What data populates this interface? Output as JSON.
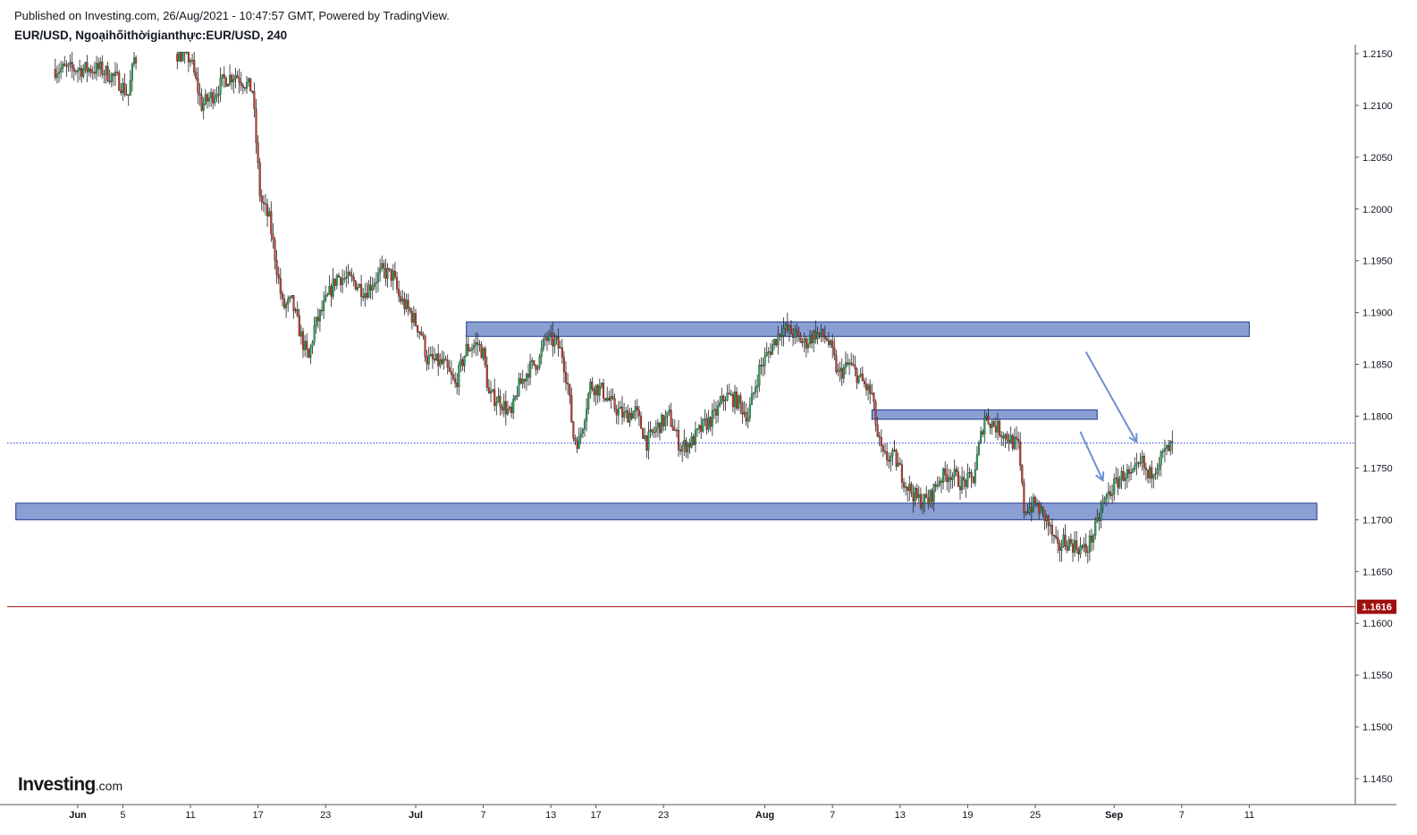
{
  "header": {
    "published": "Published on Investing.com, 26/Aug/2021 - 10:47:57 GMT, Powered by TradingView.",
    "symbol": "EUR/USD, Ngoạihốithờigianthực:EUR/USD, 240"
  },
  "logo": {
    "brand": "Investing",
    "suffix": ".com"
  },
  "chart_data": {
    "type": "candlestick",
    "symbol": "EUR/USD",
    "interval": "240",
    "ylim": [
      1.1425,
      1.2162
    ],
    "y_ticks": [
      "1.2150",
      "1.2100",
      "1.2050",
      "1.2000",
      "1.1950",
      "1.1900",
      "1.1850",
      "1.1800",
      "1.1750",
      "1.1700",
      "1.1650",
      "1.1600",
      "1.1550",
      "1.1500",
      "1.1450"
    ],
    "x_ticks": [
      {
        "label": "Jun",
        "day": 0,
        "bold": true
      },
      {
        "label": "5",
        "day": 4
      },
      {
        "label": "11",
        "day": 10
      },
      {
        "label": "17",
        "day": 16
      },
      {
        "label": "23",
        "day": 22
      },
      {
        "label": "Jul",
        "day": 30,
        "bold": true
      },
      {
        "label": "7",
        "day": 36
      },
      {
        "label": "13",
        "day": 42
      },
      {
        "label": "17",
        "day": 46
      },
      {
        "label": "23",
        "day": 52
      },
      {
        "label": "Aug",
        "day": 61,
        "bold": true
      },
      {
        "label": "7",
        "day": 67
      },
      {
        "label": "13",
        "day": 73
      },
      {
        "label": "19",
        "day": 79
      },
      {
        "label": "25",
        "day": 85
      },
      {
        "label": "Sep",
        "day": 92,
        "bold": true
      },
      {
        "label": "7",
        "day": 98
      },
      {
        "label": "11",
        "day": 104
      }
    ],
    "current_price": {
      "value": 1.1774,
      "style": "dotted",
      "color": "#1e3fc8"
    },
    "price_line": {
      "value": 1.1616,
      "label": "1.1616",
      "color": "#a11010"
    },
    "zones": [
      {
        "name": "resistance-zone-upper",
        "day_from": 34.5,
        "day_to": 104,
        "y_from": 1.1877,
        "y_to": 1.1891
      },
      {
        "name": "resistance-zone-middle",
        "day_from": 70.5,
        "day_to": 90.5,
        "y_from": 1.1797,
        "y_to": 1.1806
      },
      {
        "name": "support-zone",
        "day_from": -5.5,
        "day_to": 110,
        "y_from": 1.17,
        "y_to": 1.1716
      }
    ],
    "arrows": [
      {
        "name": "down-arrow-1",
        "from": [
          89.5,
          1.1862
        ],
        "to": [
          94,
          1.1775
        ]
      },
      {
        "name": "down-arrow-2",
        "from": [
          89,
          1.1785
        ],
        "to": [
          91,
          1.1738
        ]
      }
    ],
    "colors": {
      "up": "#26a65b",
      "down": "#c0392b",
      "zone_fill": "#8a9fd4",
      "zone_stroke": "#1e3a8a",
      "arrow": "#6f8fd0"
    },
    "anchors": [
      [
        -2.0,
        1.2135
      ],
      [
        2.0,
        1.2135
      ],
      [
        3.5,
        1.2125
      ],
      [
        4.5,
        1.211
      ],
      [
        5.0,
        1.2145
      ],
      [
        9.0,
        1.215
      ],
      [
        10.0,
        1.2145
      ],
      [
        11.0,
        1.21
      ],
      [
        12.0,
        1.211
      ],
      [
        13.0,
        1.2125
      ],
      [
        14.0,
        1.213
      ],
      [
        15.0,
        1.212
      ],
      [
        15.5,
        1.2115
      ],
      [
        16.2,
        1.201
      ],
      [
        17.0,
        1.199
      ],
      [
        17.5,
        1.1955
      ],
      [
        18.2,
        1.1905
      ],
      [
        19.0,
        1.191
      ],
      [
        20.0,
        1.187
      ],
      [
        20.5,
        1.1855
      ],
      [
        21.0,
        1.1885
      ],
      [
        22.0,
        1.191
      ],
      [
        23.0,
        1.1935
      ],
      [
        24.5,
        1.193
      ],
      [
        25.5,
        1.192
      ],
      [
        27.0,
        1.194
      ],
      [
        28.0,
        1.1935
      ],
      [
        28.5,
        1.1915
      ],
      [
        29.5,
        1.19
      ],
      [
        30.5,
        1.188
      ],
      [
        31.0,
        1.1855
      ],
      [
        32.5,
        1.185
      ],
      [
        33.5,
        1.183
      ],
      [
        34.5,
        1.1865
      ],
      [
        35.5,
        1.187
      ],
      [
        36.0,
        1.186
      ],
      [
        36.5,
        1.182
      ],
      [
        37.5,
        1.1815
      ],
      [
        38.5,
        1.18
      ],
      [
        39.0,
        1.1825
      ],
      [
        40.0,
        1.1845
      ],
      [
        41.0,
        1.1855
      ],
      [
        41.5,
        1.1875
      ],
      [
        42.5,
        1.187
      ],
      [
        43.0,
        1.186
      ],
      [
        43.5,
        1.183
      ],
      [
        44.0,
        1.178
      ],
      [
        44.5,
        1.1775
      ],
      [
        45.5,
        1.183
      ],
      [
        46.5,
        1.1825
      ],
      [
        47.5,
        1.181
      ],
      [
        48.5,
        1.18
      ],
      [
        49.5,
        1.1805
      ],
      [
        50.5,
        1.1775
      ],
      [
        51.5,
        1.179
      ],
      [
        52.5,
        1.18
      ],
      [
        53.5,
        1.177
      ],
      [
        54.5,
        1.1775
      ],
      [
        55.5,
        1.179
      ],
      [
        56.5,
        1.18
      ],
      [
        57.5,
        1.182
      ],
      [
        58.5,
        1.1815
      ],
      [
        59.5,
        1.18
      ],
      [
        60.5,
        1.1845
      ],
      [
        61.5,
        1.1865
      ],
      [
        62.5,
        1.1885
      ],
      [
        63.5,
        1.188
      ],
      [
        64.5,
        1.187
      ],
      [
        65.5,
        1.188
      ],
      [
        66.5,
        1.1875
      ],
      [
        67.0,
        1.186
      ],
      [
        67.5,
        1.184
      ],
      [
        68.5,
        1.185
      ],
      [
        69.5,
        1.1835
      ],
      [
        70.5,
        1.182
      ],
      [
        71.0,
        1.178
      ],
      [
        71.5,
        1.176
      ],
      [
        72.5,
        1.176
      ],
      [
        73.5,
        1.1735
      ],
      [
        74.5,
        1.172
      ],
      [
        75.5,
        1.1718
      ],
      [
        76.5,
        1.174
      ],
      [
        77.5,
        1.1745
      ],
      [
        78.5,
        1.1735
      ],
      [
        79.5,
        1.174
      ],
      [
        80.5,
        1.18
      ],
      [
        81.5,
        1.179
      ],
      [
        82.5,
        1.178
      ],
      [
        83.5,
        1.177
      ],
      [
        84.0,
        1.171
      ],
      [
        85.0,
        1.1715
      ],
      [
        86.0,
        1.17
      ],
      [
        86.5,
        1.1685
      ],
      [
        87.0,
        1.167
      ],
      [
        87.5,
        1.168
      ],
      [
        88.5,
        1.1675
      ],
      [
        89.5,
        1.167
      ],
      [
        90.5,
        1.1695
      ],
      [
        91.0,
        1.1715
      ],
      [
        91.5,
        1.1725
      ],
      [
        92.5,
        1.174
      ],
      [
        93.0,
        1.1745
      ],
      [
        93.5,
        1.174
      ],
      [
        94.5,
        1.1755
      ],
      [
        95.0,
        1.174
      ],
      [
        95.5,
        1.175
      ],
      [
        96.5,
        1.1765
      ],
      [
        97.3,
        1.1772
      ]
    ]
  }
}
